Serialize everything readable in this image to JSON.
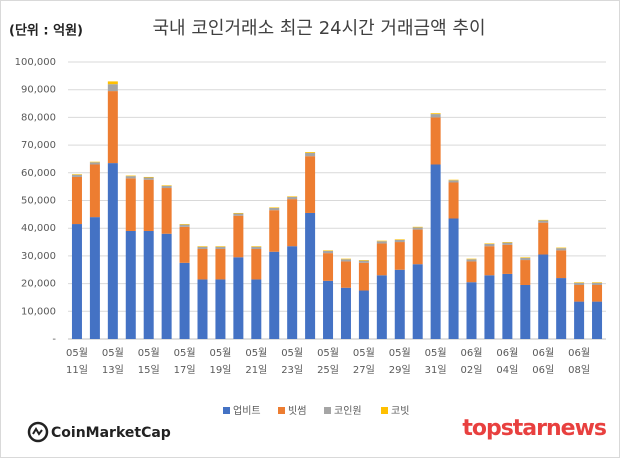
{
  "chart_data": {
    "type": "stacked_bar",
    "title": "국내 코인거래소 최근 24시간 거래금액 추이",
    "unit_label": "(단위 : 억원)",
    "logos": {
      "left": "CoinMarketCap",
      "right": "topstarnews"
    },
    "categories": [
      "05월\n11일",
      null,
      "05월\n13일",
      null,
      "05월\n15일",
      null,
      "05월\n17일",
      null,
      "05월\n19일",
      null,
      "05월\n21일",
      null,
      "05월\n23일",
      null,
      "05월\n25일",
      null,
      "05월\n27일",
      null,
      "05월\n29일",
      null,
      "05월\n31일",
      null,
      "06월\n02일",
      null,
      "06월\n04일",
      null,
      "06월\n06일",
      null,
      "06월\n08일",
      null
    ],
    "series": [
      {
        "name": "업비트",
        "color": "#4472c4",
        "values": [
          41500,
          44000,
          63500,
          39000,
          39000,
          38000,
          27500,
          21500,
          21500,
          29500,
          21500,
          31500,
          33500,
          45500,
          21000,
          18500,
          17500,
          23000,
          25000,
          27000,
          63000,
          43500,
          20500,
          23000,
          23500,
          19500,
          30500,
          22000,
          13500,
          13500
        ]
      },
      {
        "name": "빗썸",
        "color": "#ed7d31",
        "values": [
          17000,
          19000,
          26000,
          19000,
          18500,
          16500,
          13000,
          11000,
          11000,
          15000,
          11000,
          15000,
          17000,
          20500,
          10000,
          9500,
          10000,
          11500,
          10000,
          12500,
          17000,
          13000,
          7500,
          10500,
          10500,
          9000,
          11500,
          10000,
          6000,
          6000
        ]
      },
      {
        "name": "코인원",
        "color": "#a5a5a5",
        "values": [
          800,
          800,
          2500,
          800,
          800,
          800,
          800,
          800,
          800,
          800,
          800,
          800,
          800,
          1200,
          800,
          800,
          800,
          800,
          800,
          800,
          1200,
          800,
          800,
          800,
          800,
          800,
          800,
          800,
          800,
          800
        ]
      },
      {
        "name": "코빗",
        "color": "#ffc000",
        "values": [
          200,
          200,
          1000,
          200,
          200,
          200,
          200,
          200,
          200,
          200,
          200,
          200,
          200,
          300,
          200,
          200,
          200,
          200,
          200,
          200,
          300,
          200,
          200,
          200,
          200,
          200,
          200,
          200,
          200,
          200
        ]
      }
    ],
    "ylim": [
      0,
      100000
    ],
    "yticks": [
      {
        "value": 0,
        "label": "-"
      },
      {
        "value": 10000,
        "label": "10,000"
      },
      {
        "value": 20000,
        "label": "20,000"
      },
      {
        "value": 30000,
        "label": "30,000"
      },
      {
        "value": 40000,
        "label": "40,000"
      },
      {
        "value": 50000,
        "label": "50,000"
      },
      {
        "value": 60000,
        "label": "60,000"
      },
      {
        "value": 70000,
        "label": "70,000"
      },
      {
        "value": 80000,
        "label": "80,000"
      },
      {
        "value": 90000,
        "label": "90,000"
      },
      {
        "value": 100000,
        "label": "100,000"
      }
    ],
    "grid": true,
    "legend": "bottom"
  }
}
